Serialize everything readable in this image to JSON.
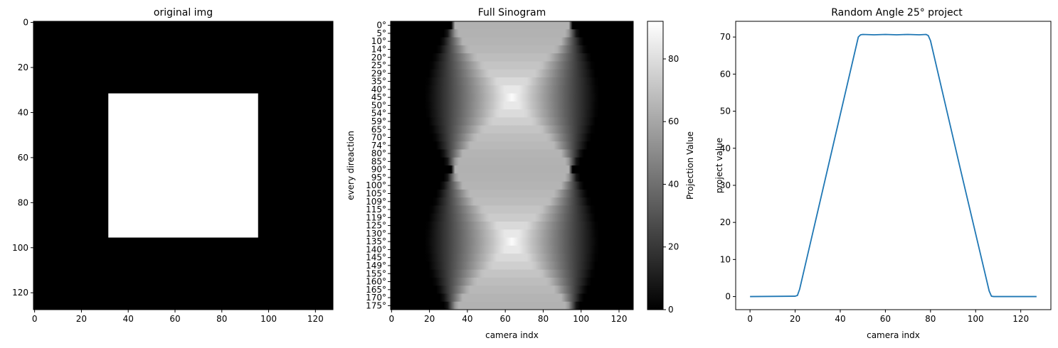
{
  "chart_data": [
    {
      "type": "heatmap",
      "title": "original img",
      "xlabel": "",
      "ylabel": "",
      "xlim": [
        -0.5,
        127.5
      ],
      "ylim": [
        127.5,
        -0.5
      ],
      "xticks": [
        "0",
        "20",
        "40",
        "60",
        "80",
        "100",
        "120"
      ],
      "yticks": [
        "0",
        "20",
        "40",
        "60",
        "80",
        "100",
        "120"
      ],
      "colormap": "gray",
      "background_value": 0,
      "square": {
        "x_start": 32,
        "x_end": 95,
        "y_start": 32,
        "y_end": 95,
        "value": 1
      },
      "colors": {
        "background": "#000000",
        "square": "#ffffff"
      }
    },
    {
      "type": "heatmap",
      "title": "Full Sinogram",
      "xlabel": "camera indx",
      "ylabel": "every direaction",
      "xlim": [
        -0.5,
        127.5
      ],
      "xticks": [
        "0",
        "20",
        "40",
        "60",
        "80",
        "100",
        "120"
      ],
      "ytick_labels": [
        "0°",
        "5°",
        "10°",
        "14°",
        "20°",
        "25°",
        "29°",
        "35°",
        "40°",
        "45°",
        "50°",
        "54°",
        "59°",
        "65°",
        "70°",
        "74°",
        "80°",
        "85°",
        "90°",
        "95°",
        "100°",
        "105°",
        "109°",
        "115°",
        "119°",
        "125°",
        "130°",
        "135°",
        "140°",
        "145°",
        "149°",
        "155°",
        "160°",
        "165°",
        "170°",
        "175°"
      ],
      "colormap": "gray",
      "colorbar": {
        "label": "Projection Value",
        "ticks": [
          0,
          20,
          40,
          60,
          80
        ],
        "range": [
          0,
          92
        ]
      },
      "square_side": 64,
      "square_center": 63.5
    },
    {
      "type": "line",
      "title": "Random Angle 25° project",
      "xlabel": "camera indx",
      "ylabel": "project value",
      "xlim": [
        -6.35,
        133.35
      ],
      "ylim": [
        -3.53,
        74.24
      ],
      "xticks": [
        "0",
        "20",
        "40",
        "60",
        "80",
        "100",
        "120"
      ],
      "yticks": [
        "0",
        "10",
        "20",
        "30",
        "40",
        "50",
        "60",
        "70"
      ],
      "color": "#1f77b4",
      "x": [
        0,
        20,
        21,
        22,
        35,
        48,
        49,
        50,
        55,
        60,
        65,
        70,
        75,
        78,
        79,
        80,
        93,
        106,
        107,
        108,
        127
      ],
      "y": [
        0,
        0.1,
        0.3,
        2.0,
        36.0,
        70.0,
        70.6,
        70.7,
        70.6,
        70.7,
        70.6,
        70.7,
        70.6,
        70.7,
        70.4,
        69.0,
        35.0,
        1.5,
        0.1,
        0,
        0
      ]
    }
  ]
}
